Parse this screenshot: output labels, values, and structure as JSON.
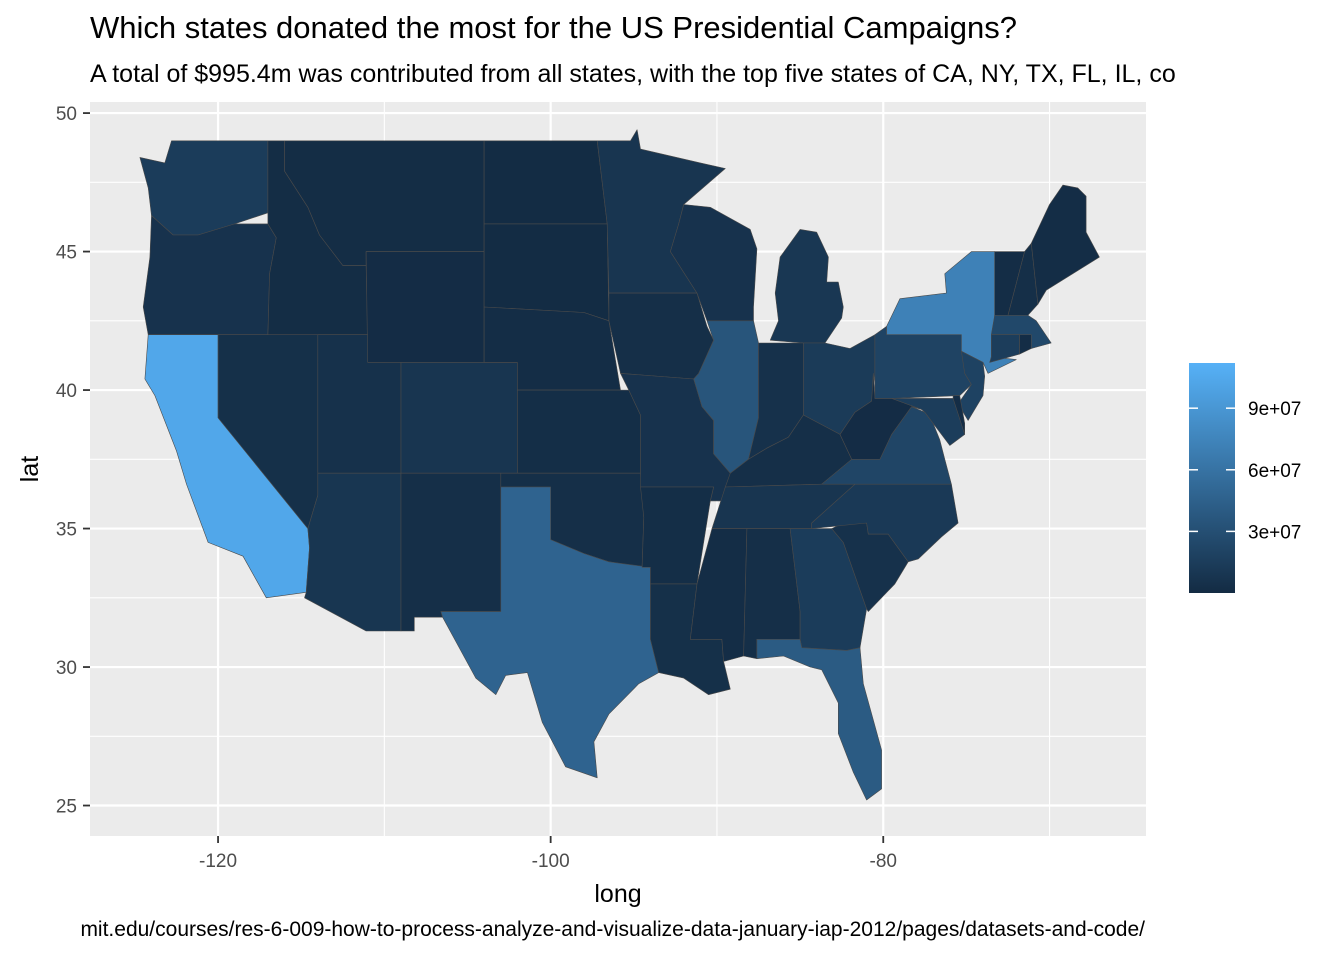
{
  "chart_data": {
    "type": "choropleth-map",
    "title": "Which states donated the most for the US Presidential Campaigns?",
    "subtitle": "A total of $995.4m was contributed from all states, with the top five states of CA, NY, TX, FL, IL, co",
    "caption": "mit.edu/courses/res-6-009-how-to-process-analyze-and-visualize-data-january-iap-2012/pages/datasets-and-code/",
    "xlabel": "long",
    "ylabel": "lat",
    "xlim": [
      -127.7,
      -64.2
    ],
    "ylim": [
      23.9,
      50.4
    ],
    "x_ticks": [
      -120,
      -100,
      -80
    ],
    "x_tick_labels": [
      "-120",
      "-100",
      "-80"
    ],
    "y_ticks": [
      25,
      30,
      35,
      40,
      45,
      50
    ],
    "y_tick_labels": [
      "25",
      "30",
      "35",
      "40",
      "45",
      "50"
    ],
    "grid": true,
    "legend": {
      "placement": "right",
      "type": "continuous",
      "min": 0,
      "max": 112000000,
      "ticks": [
        30000000,
        60000000,
        90000000
      ],
      "tick_labels": [
        "3e+07",
        "6e+07",
        "9e+07"
      ],
      "color_low": "#132b43",
      "color_high": "#56b1f7"
    },
    "states": [
      {
        "name": "washington",
        "value": 14000000
      },
      {
        "name": "oregon",
        "value": 6000000
      },
      {
        "name": "california",
        "value": 104000000
      },
      {
        "name": "nevada",
        "value": 4000000
      },
      {
        "name": "idaho",
        "value": 1500000
      },
      {
        "name": "montana",
        "value": 1500000
      },
      {
        "name": "wyoming",
        "value": 1000000
      },
      {
        "name": "utah",
        "value": 5000000
      },
      {
        "name": "colorado",
        "value": 8000000
      },
      {
        "name": "arizona",
        "value": 9000000
      },
      {
        "name": "new mexico",
        "value": 3000000
      },
      {
        "name": "north dakota",
        "value": 500000
      },
      {
        "name": "south dakota",
        "value": 700000
      },
      {
        "name": "nebraska",
        "value": 2000000
      },
      {
        "name": "kansas",
        "value": 2500000
      },
      {
        "name": "oklahoma",
        "value": 3000000
      },
      {
        "name": "texas",
        "value": 47000000
      },
      {
        "name": "minnesota",
        "value": 8000000
      },
      {
        "name": "iowa",
        "value": 3000000
      },
      {
        "name": "missouri",
        "value": 6000000
      },
      {
        "name": "arkansas",
        "value": 2500000
      },
      {
        "name": "louisiana",
        "value": 4000000
      },
      {
        "name": "wisconsin",
        "value": 6000000
      },
      {
        "name": "illinois",
        "value": 35000000
      },
      {
        "name": "michigan",
        "value": 10000000
      },
      {
        "name": "indiana",
        "value": 5000000
      },
      {
        "name": "ohio",
        "value": 13000000
      },
      {
        "name": "kentucky",
        "value": 3000000
      },
      {
        "name": "tennessee",
        "value": 8000000
      },
      {
        "name": "mississippi",
        "value": 2000000
      },
      {
        "name": "alabama",
        "value": 3000000
      },
      {
        "name": "georgia",
        "value": 14000000
      },
      {
        "name": "florida",
        "value": 40000000
      },
      {
        "name": "south carolina",
        "value": 5000000
      },
      {
        "name": "north carolina",
        "value": 12000000
      },
      {
        "name": "virginia",
        "value": 22000000
      },
      {
        "name": "west virginia",
        "value": 1000000
      },
      {
        "name": "pennsylvania",
        "value": 20000000
      },
      {
        "name": "new york",
        "value": 72000000
      },
      {
        "name": "vermont",
        "value": 2000000
      },
      {
        "name": "new hampshire",
        "value": 3000000
      },
      {
        "name": "maine",
        "value": 2000000
      },
      {
        "name": "massachusetts",
        "value": 24000000
      },
      {
        "name": "connecticut",
        "value": 15000000
      },
      {
        "name": "rhode island",
        "value": 2000000
      },
      {
        "name": "new jersey",
        "value": 19000000
      },
      {
        "name": "delaware",
        "value": 2000000
      },
      {
        "name": "maryland",
        "value": 15000000
      }
    ]
  }
}
